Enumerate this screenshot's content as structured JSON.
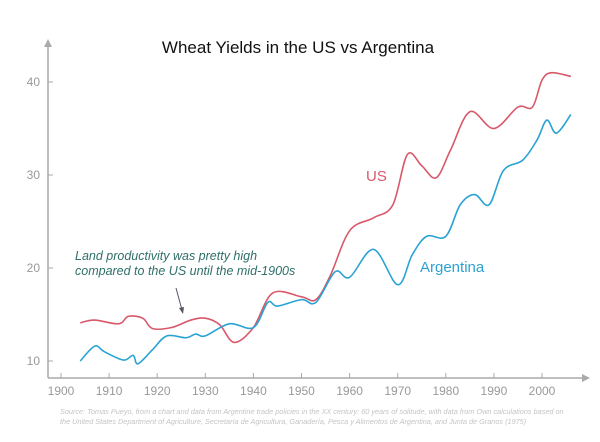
{
  "chart_data": {
    "type": "line",
    "title": "Wheat Yields in the US vs Argentina",
    "xlabel": "",
    "ylabel": "",
    "xlim": [
      1900,
      2008
    ],
    "ylim": [
      8,
      45
    ],
    "xticks": [
      1900,
      1910,
      1920,
      1930,
      1940,
      1950,
      1960,
      1970,
      1980,
      1990,
      2000
    ],
    "yticks": [
      10,
      20,
      30,
      40
    ],
    "grid": false,
    "series": [
      {
        "name": "US",
        "color": "#d9586a",
        "x": [
          1904,
          1907,
          1912,
          1914,
          1917,
          1919,
          1923,
          1927,
          1930,
          1933,
          1936,
          1940,
          1944,
          1950,
          1953,
          1956,
          1960,
          1965,
          1969,
          1972,
          1975,
          1978,
          1981,
          1985,
          1990,
          1995,
          1998,
          2000,
          2002,
          2006
        ],
        "y": [
          14.1,
          14.4,
          14.0,
          14.8,
          14.6,
          13.5,
          13.6,
          14.4,
          14.6,
          13.9,
          12.0,
          13.6,
          17.3,
          16.9,
          16.6,
          19.2,
          24.0,
          25.4,
          26.8,
          32.2,
          31.0,
          29.7,
          32.7,
          36.8,
          35.0,
          37.3,
          37.3,
          40.2,
          41.0,
          40.6
        ]
      },
      {
        "name": "Argentina",
        "color": "#2aa3d4",
        "x": [
          1904,
          1907,
          1909,
          1913,
          1915,
          1916,
          1919,
          1922,
          1926,
          1928,
          1930,
          1935,
          1940,
          1943,
          1945,
          1950,
          1953,
          1957,
          1960,
          1965,
          1970,
          1973,
          1976,
          1980,
          1983,
          1986,
          1989,
          1992,
          1996,
          1999,
          2001,
          2003,
          2006
        ],
        "y": [
          10.0,
          11.6,
          11.0,
          10.1,
          10.6,
          9.7,
          11.2,
          12.7,
          12.5,
          12.9,
          12.7,
          14.0,
          13.6,
          16.3,
          15.9,
          16.6,
          16.3,
          19.6,
          19.0,
          22.0,
          18.2,
          21.4,
          23.4,
          23.4,
          26.8,
          27.9,
          26.8,
          30.5,
          31.6,
          33.8,
          35.9,
          34.5,
          36.5
        ]
      }
    ],
    "annotations": [
      {
        "text": "Land productivity was pretty high",
        "color": "#2f6f6a"
      },
      {
        "text": "compared to the US until the mid-1900s",
        "color": "#2f6f6a"
      }
    ],
    "legend": "inline labels"
  },
  "source": [
    "Source: Tomas Pueyo, from a chart and data from Argentine trade policies in the XX century: 60 years of solitude, with data from Own calculations based on",
    "the United States Department of Agriculture, Secretaría de Agricultura, Ganadería, Pesca y Alimentos de Argentina, and Junta de Granos (1975)"
  ]
}
